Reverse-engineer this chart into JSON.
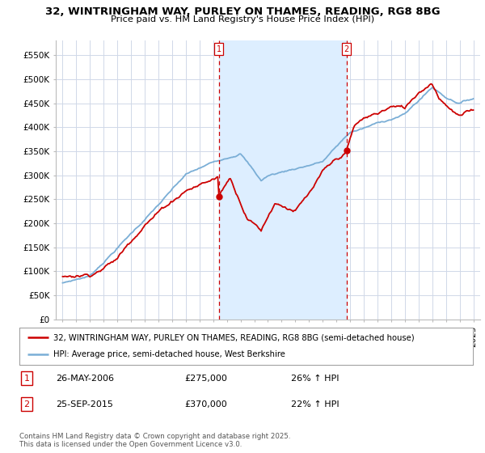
{
  "title_line1": "32, WINTRINGHAM WAY, PURLEY ON THAMES, READING, RG8 8BG",
  "title_line2": "Price paid vs. HM Land Registry's House Price Index (HPI)",
  "background_color": "#ffffff",
  "plot_bg_color": "#ffffff",
  "grid_color": "#d0d8e8",
  "red_color": "#cc0000",
  "blue_color": "#7aaed6",
  "shade_color": "#ddeeff",
  "marker1_date": 2006.4,
  "marker2_date": 2015.73,
  "annotation1": [
    "1",
    "26-MAY-2006",
    "£275,000",
    "26% ↑ HPI"
  ],
  "annotation2": [
    "2",
    "25-SEP-2015",
    "£370,000",
    "22% ↑ HPI"
  ],
  "legend_line1": "32, WINTRINGHAM WAY, PURLEY ON THAMES, READING, RG8 8BG (semi-detached house)",
  "legend_line2": "HPI: Average price, semi-detached house, West Berkshire",
  "copyright": "Contains HM Land Registry data © Crown copyright and database right 2025.\nThis data is licensed under the Open Government Licence v3.0.",
  "xmin": 1994.5,
  "xmax": 2025.5,
  "ymin": 0,
  "ymax": 580000,
  "yticks": [
    0,
    50000,
    100000,
    150000,
    200000,
    250000,
    300000,
    350000,
    400000,
    450000,
    500000,
    550000
  ],
  "xticks": [
    1995,
    1996,
    1997,
    1998,
    1999,
    2000,
    2001,
    2002,
    2003,
    2004,
    2005,
    2006,
    2007,
    2008,
    2009,
    2010,
    2011,
    2012,
    2013,
    2014,
    2015,
    2016,
    2017,
    2018,
    2019,
    2020,
    2021,
    2022,
    2023,
    2024,
    2025
  ]
}
